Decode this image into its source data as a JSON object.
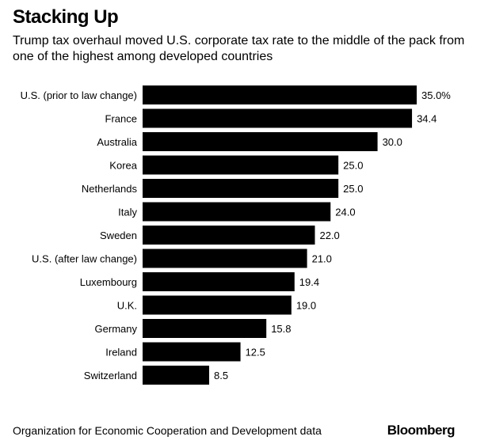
{
  "header": {
    "title": "Stacking Up",
    "subtitle": "Trump tax overhaul moved U.S. corporate tax rate to the middle of the pack from one of the highest among developed countries"
  },
  "footer": {
    "source": "Organization for Economic Cooperation and Development data",
    "brand": "Bloomberg"
  },
  "chart_data": {
    "type": "bar",
    "orientation": "horizontal",
    "title": "Stacking Up",
    "categories": [
      "U.S. (prior to law change)",
      "France",
      "Australia",
      "Korea",
      "Netherlands",
      "Italy",
      "Sweden",
      "U.S. (after law change)",
      "Luxembourg",
      "U.K.",
      "Germany",
      "Ireland",
      "Switzerland"
    ],
    "values": [
      35.0,
      34.4,
      30.0,
      25.0,
      25.0,
      24.0,
      22.0,
      21.0,
      19.4,
      19.0,
      15.8,
      12.5,
      8.5
    ],
    "value_labels": [
      "35.0%",
      "34.4",
      "30.0",
      "25.0",
      "25.0",
      "24.0",
      "22.0",
      "21.0",
      "19.4",
      "19.0",
      "15.8",
      "12.5",
      "8.5"
    ],
    "xlim": [
      0,
      35
    ],
    "grid": false,
    "bar_color": "#000000"
  }
}
